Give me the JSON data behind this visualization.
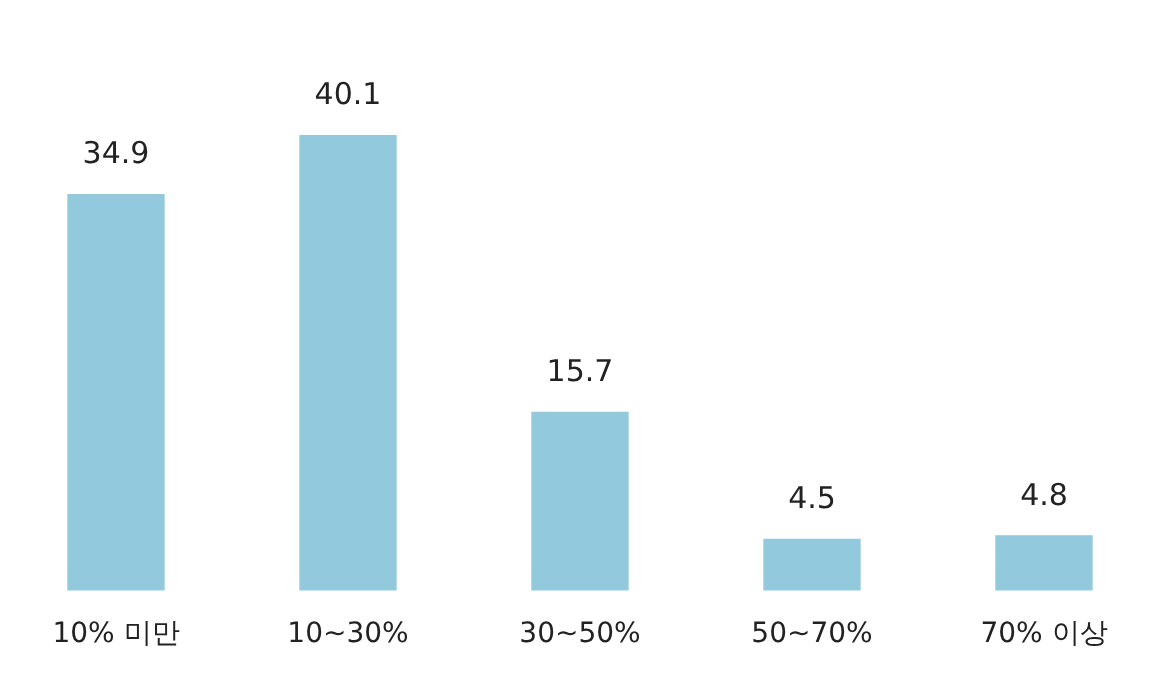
{
  "chart_data": {
    "type": "bar",
    "categories": [
      "10% 미만",
      "10~30%",
      "30~50%",
      "50~70%",
      "70% 이상"
    ],
    "values": [
      34.9,
      40.1,
      15.7,
      4.5,
      4.8
    ],
    "color": "#92c9dc",
    "data_labels": true,
    "grid": false,
    "legend": false,
    "tick_labels": "x"
  }
}
